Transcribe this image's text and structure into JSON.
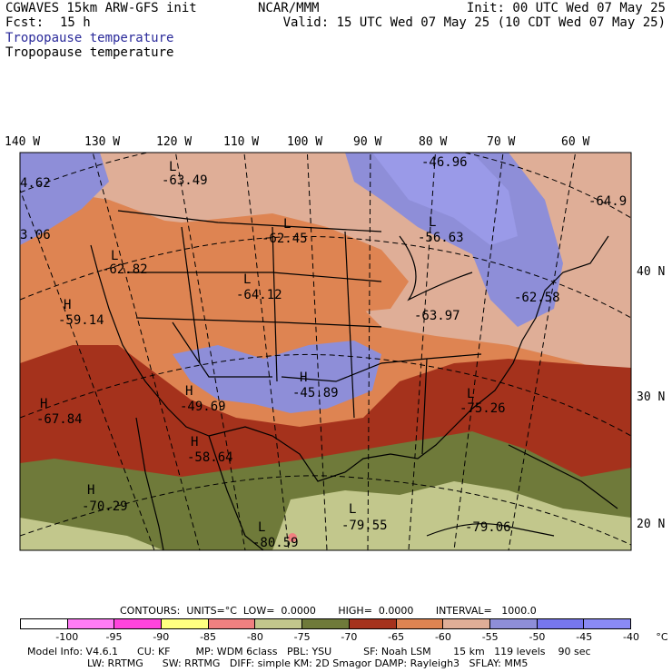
{
  "header": {
    "model": "CGWAVES 15km ARW-GFS init",
    "fcst_label": "Fcst:",
    "fcst_value": "15 h",
    "center": "NCAR/MMM",
    "init": "Init: 00 UTC Wed 07 May 25",
    "valid": "Valid: 15 UTC Wed 07 May 25 (10 CDT Wed 07 May 25)",
    "field1": "Tropopause temperature",
    "field2": "Tropopause temperature"
  },
  "longitudes": [
    "140 W",
    "130 W",
    "120 W",
    "110 W",
    "100 W",
    "90 W",
    "80 W",
    "70 W",
    "60 W"
  ],
  "latitudes": [
    "40 N",
    "30 N",
    "20 N"
  ],
  "annotations": [
    {
      "sym": "",
      "val": "4.62"
    },
    {
      "sym": "",
      "val": "3.06"
    },
    {
      "sym": "L",
      "val": "-63.49"
    },
    {
      "sym": "L",
      "val": "-62.82"
    },
    {
      "sym": "L",
      "val": "-62.45"
    },
    {
      "sym": "",
      "val": "-46.96"
    },
    {
      "sym": "L",
      "val": "-56.63"
    },
    {
      "sym": "",
      "val": "-64.9"
    },
    {
      "sym": "L",
      "val": "-64.12"
    },
    {
      "sym": "H",
      "val": "-59.14"
    },
    {
      "sym": "",
      "val": "-63.97"
    },
    {
      "sym": "",
      "val": "-62.58"
    },
    {
      "sym": "H",
      "val": "-45.89"
    },
    {
      "sym": "H",
      "val": "-49.69"
    },
    {
      "sym": "L",
      "val": "-75.26"
    },
    {
      "sym": "H",
      "val": "-67.84"
    },
    {
      "sym": "H",
      "val": "-58.64"
    },
    {
      "sym": "H",
      "val": "-70.29"
    },
    {
      "sym": "L",
      "val": "-79.55"
    },
    {
      "sym": "L",
      "val": "-80.59"
    },
    {
      "sym": "",
      "val": "-79.06"
    }
  ],
  "footer": {
    "contours": "CONTOURS:  UNITS=°C  LOW=  0.0000       HIGH=  0.0000       INTERVAL=   1000.0",
    "model_info": "Model Info: V4.6.1      CU: KF        MP: WDM 6class   PBL: YSU          SF: Noah LSM       15 km   119 levels    90 sec",
    "model_info2": "LW: RRTMG      SW: RRTMG   DIFF: simple KM: 2D Smagor DAMP: Rayleigh3   SFLAY: MM5"
  },
  "colorbar": {
    "colors": [
      "#ffffff",
      "#ff7cf5",
      "#ff44dd",
      "#ffff80",
      "#f08080",
      "#c2c78c",
      "#6f7a3a",
      "#a5321c",
      "#de8452",
      "#dfae97",
      "#8e8ed8",
      "#7777ee",
      "#8a8af5"
    ],
    "ticks": [
      "-100",
      "-95",
      "-90",
      "-85",
      "-80",
      "-75",
      "-70",
      "-65",
      "-60",
      "-55",
      "-50",
      "-45",
      "-40",
      "°C"
    ]
  }
}
